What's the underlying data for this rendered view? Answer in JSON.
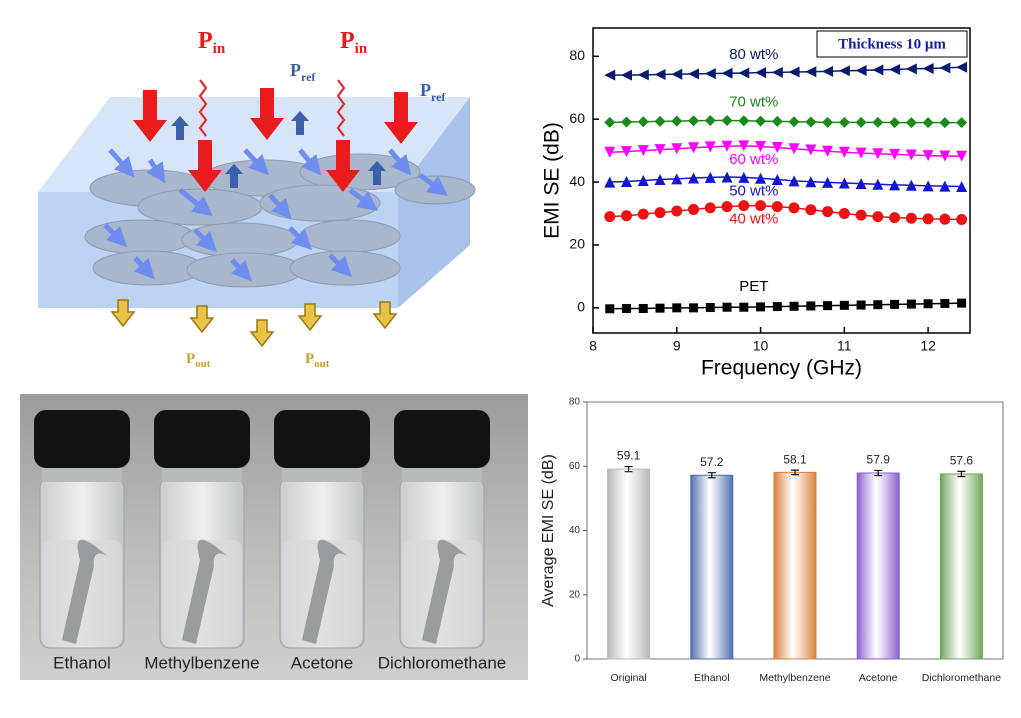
{
  "chart_data": [
    {
      "type": "line",
      "ylabel": "EMI SE (dB)",
      "xlabel": "Frequency (GHz)",
      "annotation": "Thickness 10 μm",
      "x": [
        8.2,
        8.4,
        8.6,
        8.8,
        9.0,
        9.2,
        9.4,
        9.6,
        9.8,
        10.0,
        10.2,
        10.4,
        10.6,
        10.8,
        11.0,
        11.2,
        11.4,
        11.6,
        11.8,
        12.0,
        12.2,
        12.4
      ],
      "xlim": [
        8,
        12.5
      ],
      "xticks": [
        8,
        9,
        10,
        11,
        12
      ],
      "ylim": [
        -8,
        89
      ],
      "yticks": [
        0,
        20,
        40,
        60,
        80
      ],
      "series": [
        {
          "name": "80 wt%",
          "color": "#0b1a6e",
          "marker": "left",
          "values": [
            74,
            74,
            74.1,
            74.2,
            74.3,
            74.4,
            74.5,
            74.6,
            74.7,
            74.8,
            74.9,
            75,
            75.1,
            75.2,
            75.4,
            75.5,
            75.7,
            75.8,
            76,
            76.1,
            76.3,
            76.5
          ]
        },
        {
          "name": "70 wt%",
          "color": "#1a8a1a",
          "marker": "diamond",
          "values": [
            59,
            59.1,
            59.2,
            59.3,
            59.4,
            59.5,
            59.6,
            59.6,
            59.5,
            59.4,
            59.3,
            59.2,
            59.1,
            59,
            59,
            59,
            59,
            58.9,
            58.9,
            58.9,
            58.9,
            58.9
          ]
        },
        {
          "name": "60 wt%",
          "color": "#ff00ff",
          "marker": "down",
          "values": [
            49.5,
            49.7,
            50,
            50.3,
            50.6,
            50.9,
            51.2,
            51.4,
            51.5,
            51.3,
            51,
            50.6,
            50.2,
            49.8,
            49.5,
            49.2,
            49,
            48.8,
            48.6,
            48.4,
            48.3,
            48.2
          ]
        },
        {
          "name": "50 wt%",
          "color": "#1414d4",
          "marker": "up",
          "values": [
            40,
            40.2,
            40.5,
            40.8,
            41,
            41.3,
            41.5,
            41.6,
            41.5,
            41.2,
            40.8,
            40.4,
            40.1,
            39.9,
            39.7,
            39.5,
            39.3,
            39.1,
            39,
            38.8,
            38.7,
            38.6
          ]
        },
        {
          "name": "40 wt%",
          "color": "#ee1111",
          "marker": "circle",
          "values": [
            29,
            29.3,
            29.8,
            30.3,
            30.8,
            31.3,
            31.8,
            32.2,
            32.5,
            32.5,
            32.2,
            31.8,
            31.2,
            30.6,
            30,
            29.5,
            29,
            28.7,
            28.5,
            28.3,
            28.2,
            28.1
          ]
        },
        {
          "name": "PET",
          "color": "#000000",
          "marker": "square",
          "values": [
            -0.3,
            -0.2,
            -0.2,
            -0.1,
            0,
            0,
            0.1,
            0.2,
            0.2,
            0.3,
            0.4,
            0.5,
            0.6,
            0.7,
            0.8,
            0.9,
            1.0,
            1.1,
            1.2,
            1.3,
            1.4,
            1.5
          ]
        }
      ]
    },
    {
      "type": "bar",
      "ylabel": "Average EMI SE (dB)",
      "categories": [
        "Original",
        "Ethanol",
        "Methylbenzene",
        "Acetone",
        "Dichloromethane"
      ],
      "values": [
        59.1,
        57.2,
        58.1,
        57.9,
        57.6
      ],
      "errors": [
        0.8,
        0.8,
        0.7,
        0.8,
        0.8
      ],
      "colors": [
        "#b8b8b8",
        "#4d6fae",
        "#d9803e",
        "#8a5fd0",
        "#6fa65a"
      ],
      "ylim": [
        0,
        80
      ],
      "yticks": [
        0,
        20,
        40,
        60,
        80
      ]
    }
  ],
  "schematic": {
    "incident": [
      {
        "main": "P",
        "sub": "in"
      },
      {
        "main": "P",
        "sub": "in"
      }
    ],
    "reflected": [
      {
        "main": "P",
        "sub": "ref"
      },
      {
        "main": "P",
        "sub": "ref"
      }
    ],
    "transmitted": [
      {
        "main": "P",
        "sub": "out"
      },
      {
        "main": "P",
        "sub": "out"
      }
    ]
  },
  "photo": {
    "labels": [
      "Ethanol",
      "Methylbenzene",
      "Acetone",
      "Dichloromethane"
    ]
  }
}
